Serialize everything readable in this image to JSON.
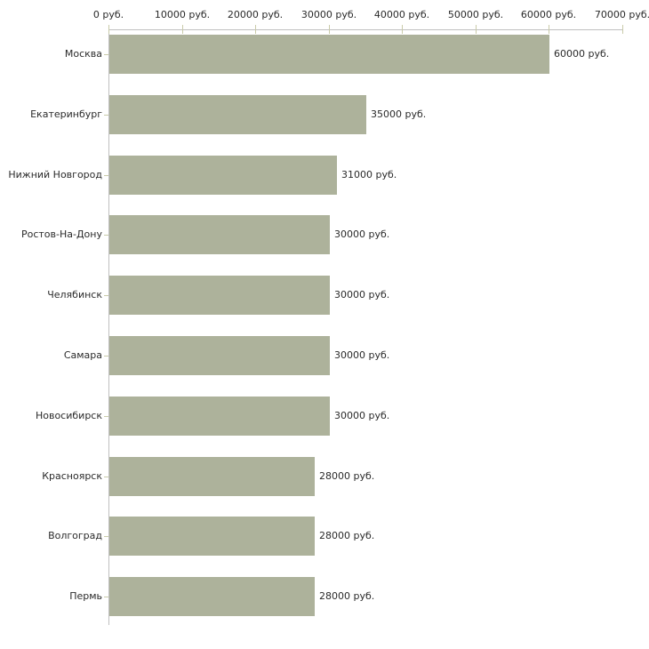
{
  "chart_data": {
    "type": "bar",
    "orientation": "horizontal",
    "title": "",
    "categories": [
      "Москва",
      "Екатеринбург",
      "Нижний Новгород",
      "Ростов-На-Дону",
      "Челябинск",
      "Самара",
      "Новосибирск",
      "Красноярск",
      "Волгоград",
      "Пермь"
    ],
    "values": [
      60000,
      35000,
      31000,
      30000,
      30000,
      30000,
      30000,
      28000,
      28000,
      28000
    ],
    "value_labels": [
      "60000 руб.",
      "35000 руб.",
      "31000 руб.",
      "30000 руб.",
      "30000 руб.",
      "30000 руб.",
      "30000 руб.",
      "28000 руб.",
      "28000 руб.",
      "28000 руб."
    ],
    "x_ticks": [
      0,
      10000,
      20000,
      30000,
      40000,
      50000,
      60000,
      70000
    ],
    "x_tick_labels": [
      "0 руб.",
      "10000 руб.",
      "20000 руб.",
      "30000 руб.",
      "40000 руб.",
      "50000 руб.",
      "60000 руб.",
      "70000 руб."
    ],
    "xlim": [
      0,
      70000
    ],
    "unit": "руб.",
    "axis_position": "top",
    "grid": false,
    "legend": null,
    "xlabel": "",
    "ylabel": "",
    "colors": {
      "bar": "#adb29b",
      "axis_line": "#c0c0c0",
      "tick": "#c9cba9",
      "text": "#2a2a2a",
      "background": "#ffffff"
    }
  }
}
